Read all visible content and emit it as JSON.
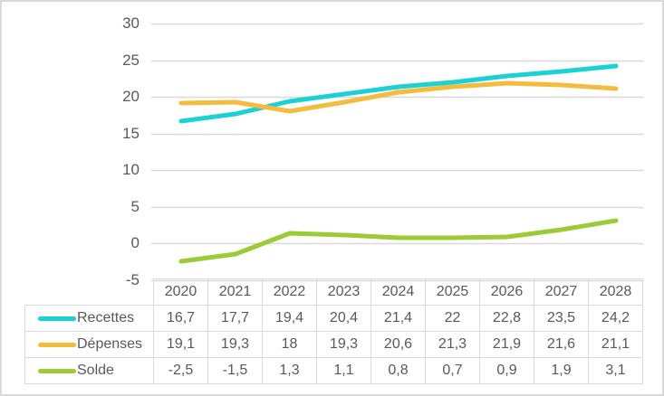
{
  "chart_data": {
    "type": "line",
    "title": "",
    "xlabel": "",
    "ylabel": "",
    "categories": [
      "2020",
      "2021",
      "2022",
      "2023",
      "2024",
      "2025",
      "2026",
      "2027",
      "2028"
    ],
    "series": [
      {
        "name": "Recettes",
        "color": "#1cd1d4",
        "values": [
          16.7,
          17.7,
          19.4,
          20.4,
          21.4,
          22,
          22.8,
          23.5,
          24.2
        ],
        "display": [
          "16,7",
          "17,7",
          "19,4",
          "20,4",
          "21,4",
          "22",
          "22,8",
          "23,5",
          "24,2"
        ]
      },
      {
        "name": "Dépenses",
        "color": "#f3bc3c",
        "values": [
          19.1,
          19.3,
          18,
          19.3,
          20.6,
          21.3,
          21.9,
          21.6,
          21.1
        ],
        "display": [
          "19,1",
          "19,3",
          "18",
          "19,3",
          "20,6",
          "21,3",
          "21,9",
          "21,6",
          "21,1"
        ]
      },
      {
        "name": "Solde",
        "color": "#9bcb35",
        "values": [
          -2.5,
          -1.5,
          1.3,
          1.1,
          0.8,
          0.7,
          0.9,
          1.9,
          3.1
        ],
        "display": [
          "-2,5",
          "-1,5",
          "1,3",
          "1,1",
          "0,8",
          "0,7",
          "0,9",
          "1,9",
          "3,1"
        ]
      }
    ],
    "ylim": [
      -5,
      30
    ],
    "y_ticks": [
      30,
      25,
      20,
      15,
      10,
      5,
      0,
      -5
    ],
    "grid": true,
    "legend_position": "table-left"
  },
  "styles": {
    "grid_color": "#d9d9d9",
    "border_color": "#d9d9d9",
    "text_color": "#595959",
    "background": "#ffffff"
  }
}
